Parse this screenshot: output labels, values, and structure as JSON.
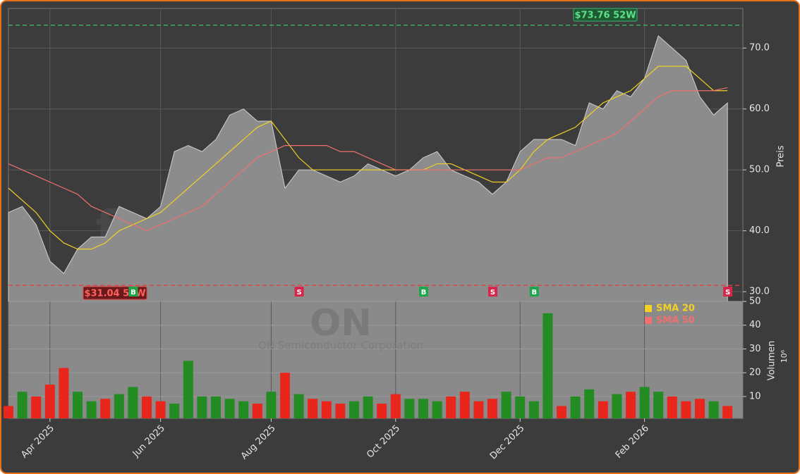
{
  "chart_data": [
    {
      "type": "area",
      "watermark": "forexsignale.trade",
      "symbol": "ON",
      "company": "ON Semiconductor Corporation",
      "y_label": "Preis",
      "color": "#8c8c8c",
      "values": [
        43,
        44,
        41,
        35,
        33,
        37,
        39,
        39,
        44,
        43,
        42,
        44,
        53,
        54,
        53,
        55,
        59,
        60,
        58,
        58,
        47,
        50,
        50,
        49,
        48,
        49,
        51,
        50,
        49,
        50,
        52,
        53,
        50,
        49,
        48,
        46,
        48,
        53,
        55,
        55,
        55,
        54,
        61,
        60,
        63,
        62,
        65,
        72,
        70,
        68,
        62,
        59,
        61
      ],
      "series": [
        {
          "name": "SMA 20",
          "color": "#f2d024",
          "values": [
            47,
            45,
            43,
            40,
            38,
            37,
            37,
            38,
            40,
            41,
            42,
            43,
            45,
            47,
            49,
            51,
            53,
            55,
            57,
            58,
            55,
            52,
            50,
            50,
            50,
            50,
            50,
            50,
            50,
            50,
            50,
            51,
            51,
            50,
            49,
            48,
            48,
            50,
            53,
            55,
            56,
            57,
            59,
            61,
            62,
            63,
            65,
            67,
            67,
            67,
            65,
            63,
            63
          ]
        },
        {
          "name": "SMA 50",
          "color": "#f07070",
          "values": [
            51,
            50,
            49,
            48,
            47,
            46,
            44,
            43,
            42,
            41,
            40,
            41,
            42,
            43,
            44,
            46,
            48,
            50,
            52,
            53,
            54,
            54,
            54,
            54,
            53,
            53,
            52,
            51,
            50,
            50,
            50,
            50,
            50,
            50,
            50,
            50,
            50,
            50,
            51,
            52,
            52,
            53,
            54,
            55,
            56,
            58,
            60,
            62,
            63,
            63,
            63,
            63,
            63.5
          ]
        }
      ],
      "high_line": {
        "value": 73.76,
        "label": "$73.76 52W",
        "color": "#3cb371"
      },
      "low_line": {
        "value": 31.04,
        "label": "$31.04 52W",
        "color": "#e04040"
      },
      "signals": [
        null,
        null,
        null,
        null,
        null,
        null,
        null,
        null,
        null,
        "B",
        null,
        null,
        null,
        null,
        null,
        null,
        null,
        null,
        null,
        null,
        null,
        "S",
        null,
        null,
        null,
        null,
        null,
        null,
        null,
        null,
        "B",
        null,
        null,
        null,
        null,
        "S",
        null,
        null,
        "B",
        null,
        null,
        null,
        null,
        null,
        null,
        null,
        null,
        null,
        null,
        null,
        null,
        null,
        "S"
      ],
      "signal_colors": {
        "B": "#1fa54a",
        "S": "#d8264a"
      },
      "ylim": [
        28.4,
        76.5
      ],
      "yticks": [
        {
          "value": 30,
          "label": "30.0"
        },
        {
          "value": 40,
          "label": "40.0"
        },
        {
          "value": 50,
          "label": "50.0"
        },
        {
          "value": 60,
          "label": "60.0"
        },
        {
          "value": 70,
          "label": "70.0"
        }
      ],
      "grid": true
    },
    {
      "type": "bar",
      "y_label": "Volumen",
      "y_unit": "10⁶",
      "categories": [
        null,
        null,
        null,
        "Apr 2025",
        null,
        null,
        null,
        null,
        null,
        null,
        null,
        "Jun 2025",
        null,
        null,
        null,
        null,
        null,
        null,
        null,
        "Aug 2025",
        null,
        null,
        null,
        null,
        null,
        null,
        null,
        null,
        "Oct 2025",
        null,
        null,
        null,
        null,
        null,
        null,
        null,
        null,
        "Dec 2025",
        null,
        null,
        null,
        null,
        null,
        null,
        null,
        null,
        "Feb 2026",
        null,
        null,
        null,
        null,
        null,
        null
      ],
      "values": [
        6,
        12,
        10,
        15,
        22,
        12,
        8,
        9,
        11,
        14,
        10,
        8,
        7,
        25,
        10,
        10,
        9,
        8,
        7,
        12,
        20,
        11,
        9,
        8,
        7,
        8,
        10,
        7,
        11,
        9,
        9,
        8,
        10,
        12,
        8,
        9,
        12,
        10,
        8,
        45,
        6,
        10,
        13,
        8,
        11,
        12,
        14,
        12,
        10,
        8,
        9,
        8,
        6
      ],
      "colors": [
        "#e8261c",
        "#228b22",
        "#e8261c",
        "#e8261c",
        "#e8261c",
        "#228b22",
        "#228b22",
        "#e8261c",
        "#228b22",
        "#228b22",
        "#e8261c",
        "#e8261c",
        "#228b22",
        "#228b22",
        "#228b22",
        "#228b22",
        "#228b22",
        "#228b22",
        "#e8261c",
        "#228b22",
        "#e8261c",
        "#228b22",
        "#e8261c",
        "#e8261c",
        "#e8261c",
        "#228b22",
        "#228b22",
        "#e8261c",
        "#e8261c",
        "#228b22",
        "#228b22",
        "#228b22",
        "#e8261c",
        "#e8261c",
        "#e8261c",
        "#e8261c",
        "#228b22",
        "#228b22",
        "#228b22",
        "#228b22",
        "#e8261c",
        "#228b22",
        "#228b22",
        "#e8261c",
        "#228b22",
        "#e8261c",
        "#228b22",
        "#228b22",
        "#e8261c",
        "#e8261c",
        "#e8261c",
        "#228b22",
        "#e8261c"
      ],
      "ylim": [
        0.8,
        50
      ],
      "yticks": [
        10,
        20,
        30,
        40,
        50
      ],
      "grid": true
    }
  ]
}
